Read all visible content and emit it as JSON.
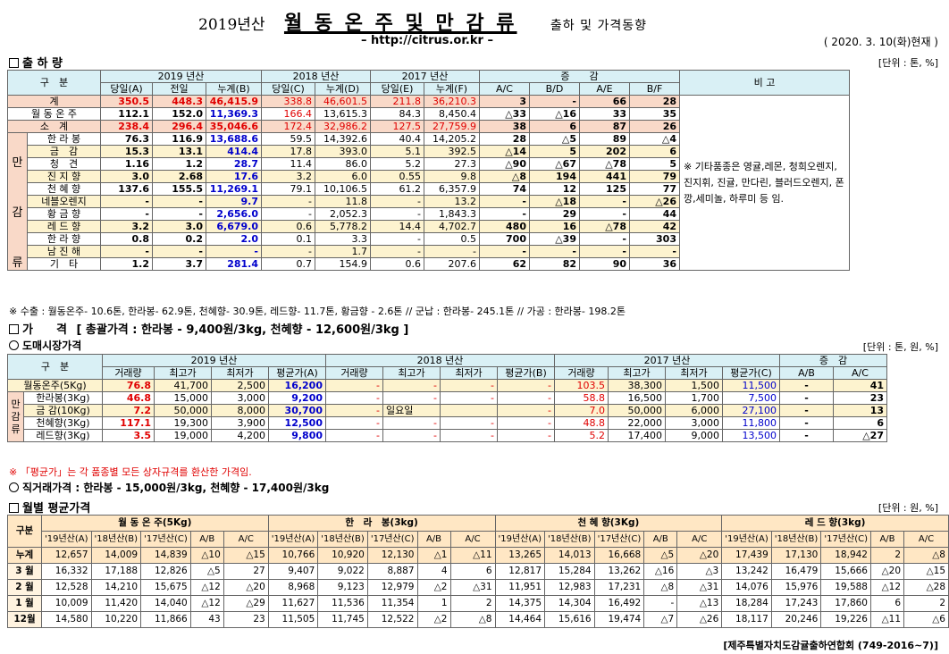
{
  "header": {
    "year_prefix": "2019년산",
    "title": "월 동 온 주 및 만 감 류",
    "subtitle": "출하 및 가격동향",
    "url": "– http://citrus.or.kr –",
    "asof": "( 2020. 3. 10(화)현재 )"
  },
  "ship": {
    "heading": "출 하 량",
    "unit": "[단위 : 톤, %]",
    "group_headers": [
      "구　분",
      "2019 년산",
      "2018 년산",
      "2017 년산",
      "증　　감",
      "비 고"
    ],
    "col_headers": [
      "당일(A)",
      "전일",
      "누계(B)",
      "당일(C)",
      "누계(D)",
      "당일(E)",
      "누계(F)",
      "A/C",
      "B/D",
      "A/E",
      "B/F"
    ],
    "side_label": [
      "만",
      "감",
      "류"
    ],
    "rows": [
      {
        "name": "계",
        "v": [
          "350.5",
          "448.3",
          "46,415.9",
          "338.8",
          "46,601.5",
          "211.8",
          "36,210.3",
          "3",
          "-",
          "66",
          "28"
        ],
        "cls": "pink"
      },
      {
        "name": "월 동 온 주",
        "v": [
          "112.1",
          "152.0",
          "11,369.3",
          "166.4",
          "13,615.3",
          "84.3",
          "8,450.4",
          "△33",
          "△16",
          "33",
          "35"
        ],
        "cls": "white"
      },
      {
        "name": "소　계",
        "v": [
          "238.4",
          "296.4",
          "35,046.6",
          "172.4",
          "32,986.2",
          "127.5",
          "27,759.9",
          "38",
          "6",
          "87",
          "26"
        ],
        "cls": "pink"
      },
      {
        "name": "한 라 봉",
        "v": [
          "76.3",
          "116.9",
          "13,688.6",
          "59.5",
          "14,392.6",
          "40.4",
          "14,205.2",
          "28",
          "△5",
          "89",
          "△4"
        ],
        "cls": "white"
      },
      {
        "name": "금　감",
        "v": [
          "15.3",
          "13.1",
          "414.4",
          "17.8",
          "393.0",
          "5.1",
          "392.5",
          "△14",
          "5",
          "202",
          "6"
        ],
        "cls": "yel"
      },
      {
        "name": "청　견",
        "v": [
          "1.16",
          "1.2",
          "28.7",
          "11.4",
          "86.0",
          "5.2",
          "27.3",
          "△90",
          "△67",
          "△78",
          "5"
        ],
        "cls": "white"
      },
      {
        "name": "진 지 향",
        "v": [
          "3.0",
          "2.68",
          "17.6",
          "3.2",
          "6.0",
          "0.55",
          "9.8",
          "△8",
          "194",
          "441",
          "79"
        ],
        "cls": "yel"
      },
      {
        "name": "천 혜 향",
        "v": [
          "137.6",
          "155.5",
          "11,269.1",
          "79.1",
          "10,106.5",
          "61.2",
          "6,357.9",
          "74",
          "12",
          "125",
          "77"
        ],
        "cls": "white"
      },
      {
        "name": "네블오렌지",
        "v": [
          "-",
          "-",
          "9.7",
          "-",
          "11.8",
          "-",
          "13.2",
          "-",
          "△18",
          "-",
          "△26"
        ],
        "cls": "yel"
      },
      {
        "name": "황 금 향",
        "v": [
          "-",
          "-",
          "2,656.0",
          "-",
          "2,052.3",
          "-",
          "1,843.3",
          "-",
          "29",
          "-",
          "44"
        ],
        "cls": "white"
      },
      {
        "name": "레 드 향",
        "v": [
          "3.2",
          "3.0",
          "6,679.0",
          "0.6",
          "5,778.2",
          "14.4",
          "4,702.7",
          "480",
          "16",
          "△78",
          "42"
        ],
        "cls": "yel"
      },
      {
        "name": "한 라 향",
        "v": [
          "0.8",
          "0.2",
          "2.0",
          "0.1",
          "3.3",
          "-",
          "0.5",
          "700",
          "△39",
          "-",
          "303"
        ],
        "cls": "white"
      },
      {
        "name": "남 진 해",
        "v": [
          "-",
          "-",
          "-",
          "-",
          "1.7",
          "-",
          "-",
          "-",
          "-",
          "-",
          "-"
        ],
        "cls": "yel"
      },
      {
        "name": "기　타",
        "v": [
          "1.2",
          "3.7",
          "281.4",
          "0.7",
          "154.9",
          "0.6",
          "207.6",
          "62",
          "82",
          "90",
          "36"
        ],
        "cls": "white"
      }
    ],
    "remark": "※ 기타품종은 영귤,레몬, 청희오렌지, 진지휘, 진귤, 만다린, 블러드오렌지, 폰깡,세미놀, 하루미 등 임.",
    "note": "※ 수출 : 월동온주- 10.6톤, 한라봉- 62.9톤, 천혜향- 30.9톤, 레드향- 11.7톤, 황금향 - 2.6톤 // 군납 : 한라봉- 245.1톤 // 가공 : 한라봉- 198.2톤"
  },
  "price": {
    "heading": "가　　격",
    "summary": "[ 총괄가격 : 한라봉 - 9,400원/3kg, 천혜향 - 12,600원/3kg ]",
    "wholesale_heading": "도매시장가격",
    "unit": "[단위 : 톤, 원, %]",
    "group_headers": [
      "구　분",
      "2019 년산",
      "2018 년산",
      "2017 년산",
      "증　감"
    ],
    "col_headers": [
      "거래량",
      "최고가",
      "최저가",
      "평균가(A)",
      "거래량",
      "최고가",
      "최저가",
      "평균가(B)",
      "거래량",
      "최고가",
      "최저가",
      "평균가(C)",
      "A/B",
      "A/C"
    ],
    "side_label": [
      "만",
      "감",
      "류"
    ],
    "rows": [
      {
        "name": "월동온주(5Kg)",
        "v": [
          "76.8",
          "41,700",
          "2,500",
          "16,200",
          "-",
          "-",
          "-",
          "-",
          "103.5",
          "38,300",
          "1,500",
          "11,500",
          "-",
          "41"
        ]
      },
      {
        "name": "한라봉(3Kg)",
        "v": [
          "46.8",
          "15,000",
          "3,000",
          "9,200",
          "-",
          "-",
          "-",
          "-",
          "58.8",
          "16,500",
          "1,700",
          "7,500",
          "-",
          "23"
        ]
      },
      {
        "name": "금 감(10Kg)",
        "v": [
          "7.2",
          "50,000",
          "8,000",
          "30,700",
          "-",
          "일요일",
          "",
          "-",
          "7.0",
          "50,000",
          "6,000",
          "27,100",
          "-",
          "13"
        ]
      },
      {
        "name": "천혜향(3Kg)",
        "v": [
          "117.1",
          "19,300",
          "3,900",
          "12,500",
          "-",
          "-",
          "-",
          "-",
          "48.8",
          "22,000",
          "3,000",
          "11,800",
          "-",
          "6"
        ]
      },
      {
        "name": "레드향(3Kg)",
        "v": [
          "3.5",
          "19,000",
          "4,200",
          "9,800",
          "-",
          "-",
          "-",
          "-",
          "5.2",
          "17,400",
          "9,000",
          "13,500",
          "-",
          "△27"
        ]
      }
    ],
    "note": "※ 「평균가」는 각 품종별 모든 상자규격를 환산한 가격임.",
    "direct": "직거래가격 : 한라봉 - 15,000원/3kg,  천혜향 - 17,400원/3kg"
  },
  "monthly": {
    "heading": "월별 평균가격",
    "unit": "[단위 : 원, %]",
    "corner": "구분",
    "groups": [
      "월 동 온 주(5Kg)",
      "한　라　봉(3kg)",
      "천 혜 향(3Kg)",
      "레 드 향(3kg)"
    ],
    "sub_headers": [
      "'19년산(A)",
      "'18년산(B)",
      "'17년산(C)",
      "A/B",
      "A/C"
    ],
    "rows": [
      {
        "name": "누계",
        "v": [
          "12,657",
          "14,009",
          "14,839",
          "△10",
          "△15",
          "10,766",
          "10,920",
          "12,130",
          "△1",
          "△11",
          "13,265",
          "14,013",
          "16,668",
          "△5",
          "△20",
          "17,439",
          "17,130",
          "18,942",
          "2",
          "△8"
        ]
      },
      {
        "name": "3 월",
        "v": [
          "16,332",
          "17,188",
          "12,826",
          "△5",
          "27",
          "9,407",
          "9,022",
          "8,887",
          "4",
          "6",
          "12,817",
          "15,284",
          "13,262",
          "△16",
          "△3",
          "13,242",
          "16,479",
          "15,666",
          "△20",
          "△15"
        ]
      },
      {
        "name": "2 월",
        "v": [
          "12,528",
          "14,210",
          "15,675",
          "△12",
          "△20",
          "8,968",
          "9,123",
          "12,979",
          "△2",
          "△31",
          "11,951",
          "12,983",
          "17,231",
          "△8",
          "△31",
          "14,076",
          "15,976",
          "19,588",
          "△12",
          "△28"
        ]
      },
      {
        "name": "1 월",
        "v": [
          "10,009",
          "11,420",
          "14,040",
          "△12",
          "△29",
          "11,627",
          "11,536",
          "11,354",
          "1",
          "2",
          "14,375",
          "14,304",
          "16,492",
          "-",
          "△13",
          "18,284",
          "17,243",
          "17,860",
          "6",
          "2"
        ]
      },
      {
        "name": "12월",
        "v": [
          "14,580",
          "10,220",
          "11,866",
          "43",
          "23",
          "11,505",
          "11,745",
          "12,522",
          "△2",
          "△8",
          "14,464",
          "15,616",
          "19,474",
          "△7",
          "△26",
          "18,117",
          "20,246",
          "19,226",
          "△11",
          "△6"
        ]
      }
    ]
  },
  "footer": "[제주특별자치도감귤출하연합회 (749-2016~7)]"
}
